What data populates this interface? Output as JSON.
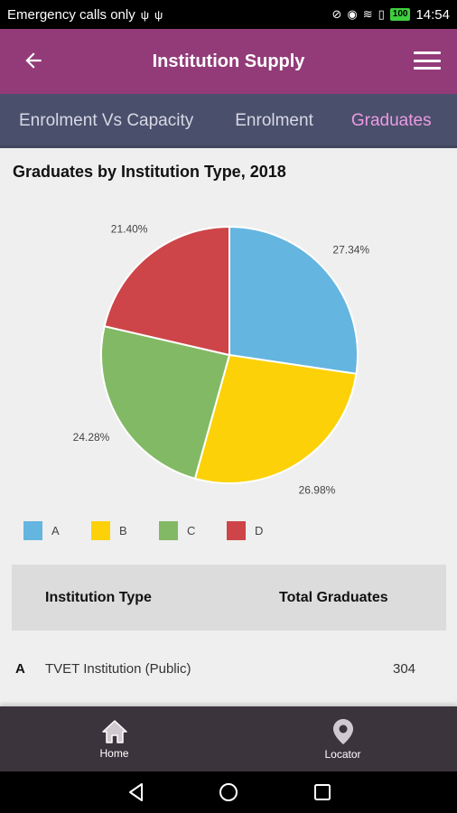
{
  "status_bar": {
    "carrier_text": "Emergency calls only",
    "battery": "100",
    "time": "14:54"
  },
  "app_bar": {
    "title": "Institution Supply",
    "back_icon": "arrow-left-icon",
    "menu_icon": "hamburger-menu-icon"
  },
  "tabs": [
    {
      "label": "Enrolment Vs Capacity"
    },
    {
      "label": "Enrolment"
    },
    {
      "label": "Graduates",
      "active": true
    }
  ],
  "chart_data": {
    "type": "pie",
    "title": "Graduates by Institution Type, 2018",
    "categories": [
      "A",
      "B",
      "C",
      "D"
    ],
    "values": [
      27.34,
      26.98,
      24.28,
      21.4
    ],
    "labels": [
      "27.34%",
      "26.98%",
      "24.28%",
      "21.40%"
    ],
    "colors": [
      "#64b5e0",
      "#fcd108",
      "#82b965",
      "#cd4548"
    ],
    "legend_position": "bottom-left"
  },
  "table": {
    "headers": [
      "Institution Type",
      "Total Graduates"
    ],
    "rows": [
      {
        "key": "A",
        "name": "TVET Institution (Public)",
        "value": "304"
      }
    ]
  },
  "bottom_nav": {
    "items": [
      {
        "label": "Home",
        "icon": "home-icon"
      },
      {
        "label": "Locator",
        "icon": "location-pin-icon"
      }
    ]
  }
}
